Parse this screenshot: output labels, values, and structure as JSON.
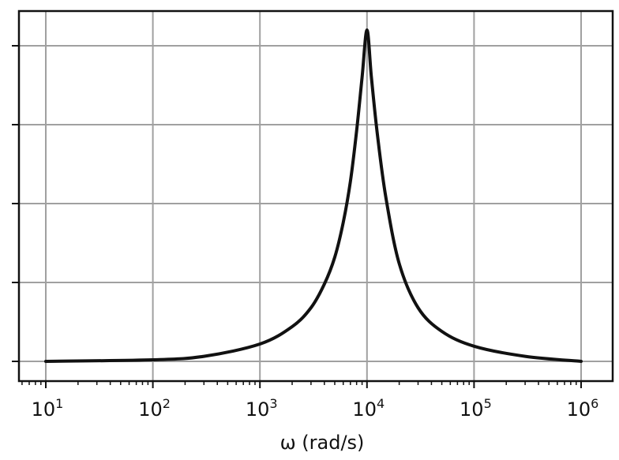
{
  "chart_data": {
    "type": "line",
    "title": "",
    "xlabel": "ω (rad/s)",
    "ylabel": "",
    "x_scale": "log",
    "xlim": [
      10,
      1000000
    ],
    "ylim": [
      0,
      1
    ],
    "grid": true,
    "x_ticks": [
      {
        "value": 10,
        "base": "10",
        "exp": "1"
      },
      {
        "value": 100,
        "base": "10",
        "exp": "2"
      },
      {
        "value": 1000,
        "base": "10",
        "exp": "3"
      },
      {
        "value": 10000,
        "base": "10",
        "exp": "4"
      },
      {
        "value": 100000,
        "base": "10",
        "exp": "5"
      },
      {
        "value": 1000000,
        "base": "10",
        "exp": "6"
      }
    ],
    "y_ticks": [
      0,
      0.25,
      0.5,
      0.75,
      1
    ],
    "y_tick_labels": [],
    "series": [
      {
        "color": "#111111",
        "points": [
          [
            10,
            0.0
          ],
          [
            100,
            0.005
          ],
          [
            300,
            0.016
          ],
          [
            1000,
            0.055
          ],
          [
            2000,
            0.11
          ],
          [
            3000,
            0.17
          ],
          [
            4000,
            0.245
          ],
          [
            5000,
            0.33
          ],
          [
            6000,
            0.44
          ],
          [
            7000,
            0.57
          ],
          [
            8000,
            0.73
          ],
          [
            9000,
            0.9
          ],
          [
            10000,
            1.05
          ],
          [
            11000,
            0.9
          ],
          [
            12500,
            0.72
          ],
          [
            15000,
            0.52
          ],
          [
            20000,
            0.31
          ],
          [
            30000,
            0.17
          ],
          [
            50000,
            0.095
          ],
          [
            100000,
            0.048
          ],
          [
            300000,
            0.016
          ],
          [
            1000000,
            0.0
          ]
        ]
      }
    ]
  }
}
